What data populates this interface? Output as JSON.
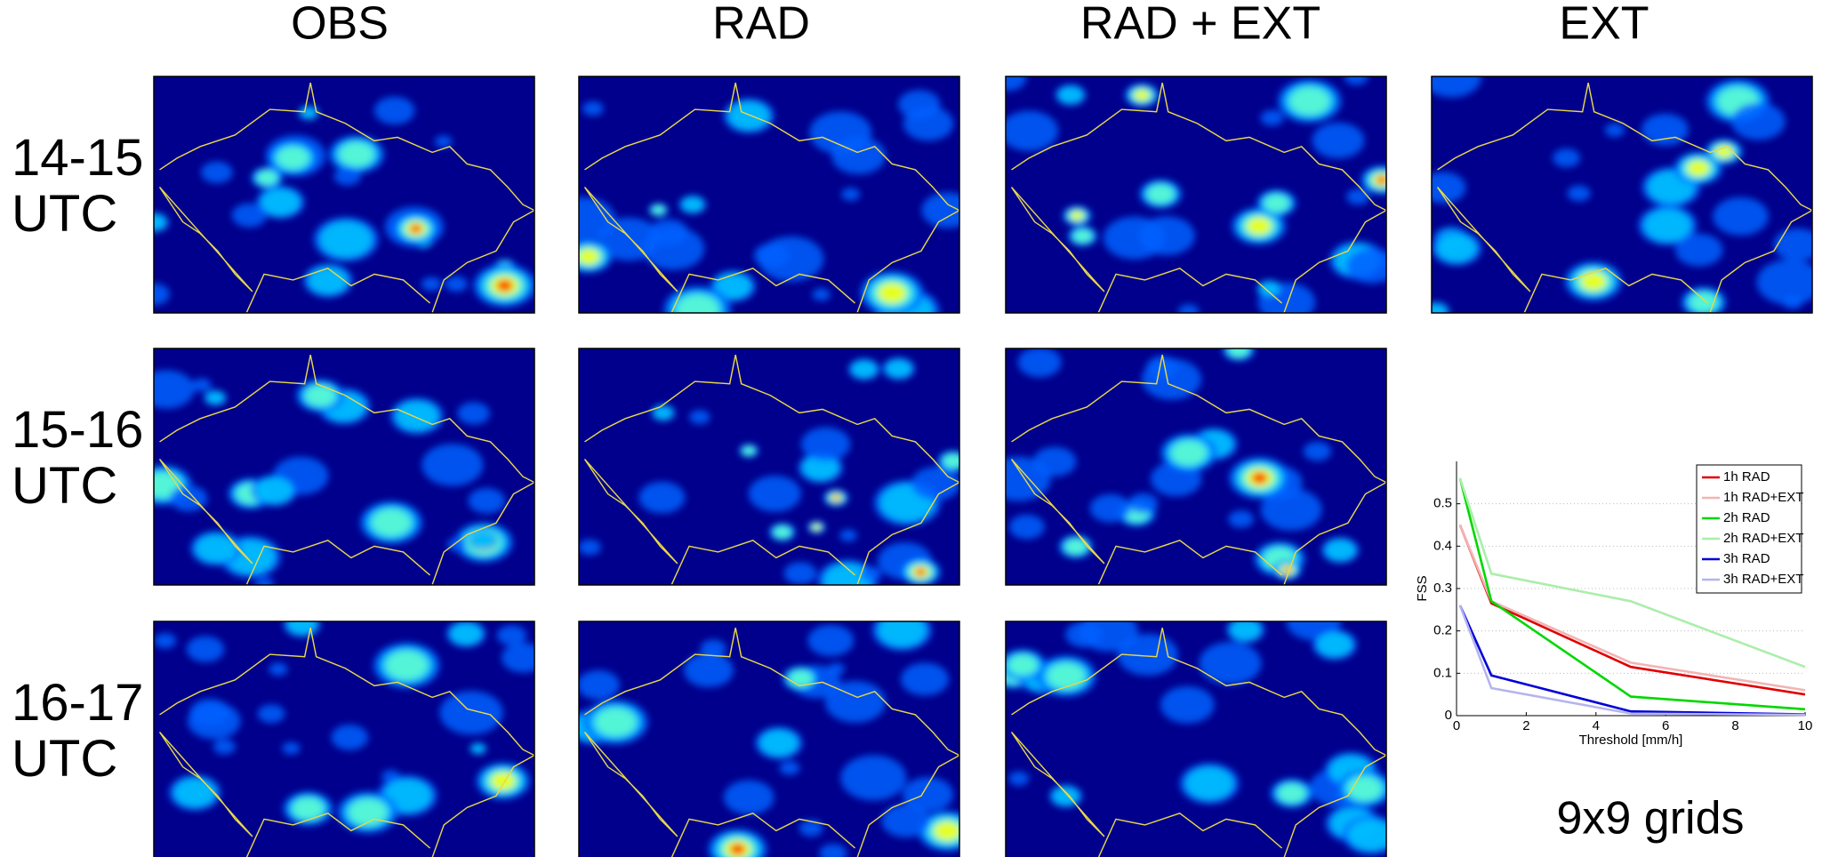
{
  "panel_grid": {
    "columns": [
      "OBS",
      "RAD",
      "RAD + EXT",
      "EXT"
    ],
    "rows": [
      [
        "14-15",
        "UTC"
      ],
      [
        "15-16",
        "UTC"
      ],
      [
        "16-17",
        "UTC"
      ]
    ]
  },
  "caption": "9x9 grids",
  "chart_data": {
    "type": "line",
    "x_label": "Threshold [mm/h]",
    "y_label": "FSS",
    "x": [
      0.1,
      1,
      5,
      10
    ],
    "series": [
      {
        "name": "1h RAD",
        "color": "#e00000",
        "values": [
          0.45,
          0.265,
          0.115,
          0.05
        ]
      },
      {
        "name": "1h RAD+EXT",
        "color": "#f2b4b4",
        "values": [
          0.45,
          0.27,
          0.125,
          0.06
        ]
      },
      {
        "name": "2h RAD",
        "color": "#00d800",
        "values": [
          0.56,
          0.27,
          0.045,
          0.015
        ]
      },
      {
        "name": "2h RAD+EXT",
        "color": "#aaeeaa",
        "values": [
          0.56,
          0.335,
          0.27,
          0.115
        ]
      },
      {
        "name": "3h RAD",
        "color": "#0000d8",
        "values": [
          0.26,
          0.095,
          0.01,
          0.003
        ]
      },
      {
        "name": "3h RAD+EXT",
        "color": "#b4b4ee",
        "values": [
          0.26,
          0.065,
          0.005,
          0.002
        ]
      }
    ],
    "xlim": [
      0,
      10
    ],
    "xticks": [
      0,
      2,
      4,
      6,
      8,
      10
    ],
    "ylim": [
      0,
      0.6
    ],
    "yticks": [
      0,
      0.1,
      0.2,
      0.3,
      0.4,
      0.5
    ],
    "grid": true,
    "legend": "upper right"
  }
}
